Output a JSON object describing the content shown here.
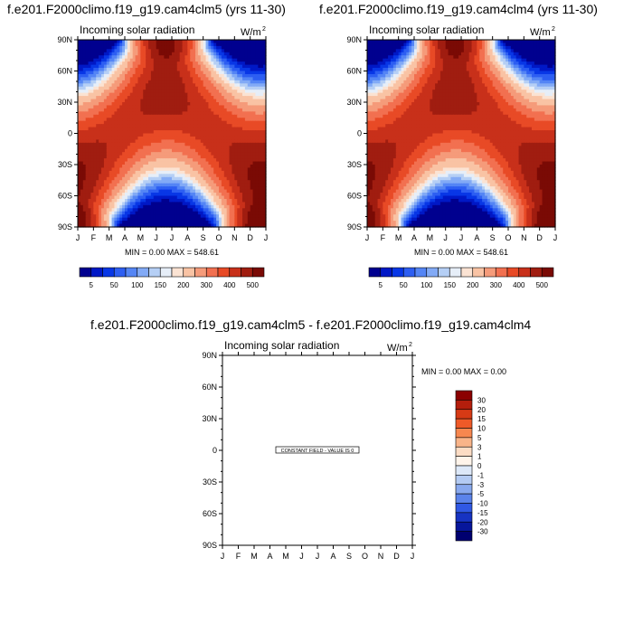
{
  "titles": {
    "left": "f.e201.F2000climo.f19_g19.cam4clm5 (yrs 11-30)",
    "right": "f.e201.F2000climo.f19_g19.cam4clm4 (yrs 11-30)",
    "diff": "f.e201.F2000climo.f19_g19.cam4clm5 - f.e201.F2000climo.f19_g19.cam4clm4"
  },
  "chart_data": [
    {
      "type": "heatmap",
      "id": "cam4clm5",
      "title": "f.e201.F2000climo.f19_g19.cam4clm5 (yrs 11-30)",
      "subtitle": "Incoming solar radiation",
      "units": "W/m",
      "units_sup": "2",
      "x_ticks": [
        "J",
        "F",
        "M",
        "A",
        "M",
        "J",
        "J",
        "A",
        "S",
        "O",
        "N",
        "D",
        "J"
      ],
      "y_ticks": [
        "90N",
        "60N",
        "30N",
        "0",
        "30S",
        "60S",
        "90S"
      ],
      "ylim": [
        -90,
        90
      ],
      "stats": "MIN =   0.00 MAX = 548.61",
      "min": 0.0,
      "max": 548.61,
      "colorbar_labels": [
        "5",
        "50",
        "100",
        "150",
        "200",
        "300",
        "400",
        "500"
      ]
    },
    {
      "type": "heatmap",
      "id": "cam4clm4",
      "title": "f.e201.F2000climo.f19_g19.cam4clm4 (yrs 11-30)",
      "subtitle": "Incoming solar radiation",
      "units": "W/m",
      "units_sup": "2",
      "x_ticks": [
        "J",
        "F",
        "M",
        "A",
        "M",
        "J",
        "J",
        "A",
        "S",
        "O",
        "N",
        "D",
        "J"
      ],
      "y_ticks": [
        "90N",
        "60N",
        "30N",
        "0",
        "30S",
        "60S",
        "90S"
      ],
      "ylim": [
        -90,
        90
      ],
      "stats": "MIN =   0.00 MAX = 548.61",
      "min": 0.0,
      "max": 548.61,
      "colorbar_labels": [
        "5",
        "50",
        "100",
        "150",
        "200",
        "300",
        "400",
        "500"
      ]
    },
    {
      "type": "heatmap",
      "id": "difference",
      "title": "f.e201.F2000climo.f19_g19.cam4clm5 - f.e201.F2000climo.f19_g19.cam4clm4",
      "subtitle": "Incoming solar radiation",
      "units": "W/m",
      "units_sup": "2",
      "x_ticks": [
        "J",
        "F",
        "M",
        "A",
        "M",
        "J",
        "J",
        "A",
        "S",
        "O",
        "N",
        "D",
        "J"
      ],
      "y_ticks": [
        "90N",
        "60N",
        "30N",
        "0",
        "30S",
        "60S",
        "90S"
      ],
      "ylim": [
        -90,
        90
      ],
      "stats": "MIN =   0.00 MAX =   0.00",
      "min": 0.0,
      "max": 0.0,
      "annotation": "CONSTANT FIELD - VALUE IS 0",
      "colorbar_labels": [
        "30",
        "20",
        "15",
        "10",
        "5",
        "3",
        "1",
        "0",
        "-1",
        "-3",
        "-5",
        "-10",
        "-15",
        "-20",
        "-30"
      ]
    }
  ],
  "palettes": {
    "abs": [
      "#00008f",
      "#0018c6",
      "#0837e6",
      "#2d5ef2",
      "#5485f5",
      "#82aaf6",
      "#b5cff5",
      "#e6eef8",
      "#fbe3d3",
      "#f9c3a4",
      "#f59b7a",
      "#f27050",
      "#e84a26",
      "#c8301a",
      "#a01d10",
      "#7a0a05"
    ],
    "diff": [
      "#8b0000",
      "#b41e0c",
      "#d63a15",
      "#ef5a28",
      "#f7874f",
      "#f9b489",
      "#fcdcc4",
      "#fff4ea",
      "#dde8f8",
      "#b4cbf3",
      "#89a9ee",
      "#5b83ea",
      "#3058e4",
      "#1733c2",
      "#07169b",
      "#000070"
    ]
  }
}
